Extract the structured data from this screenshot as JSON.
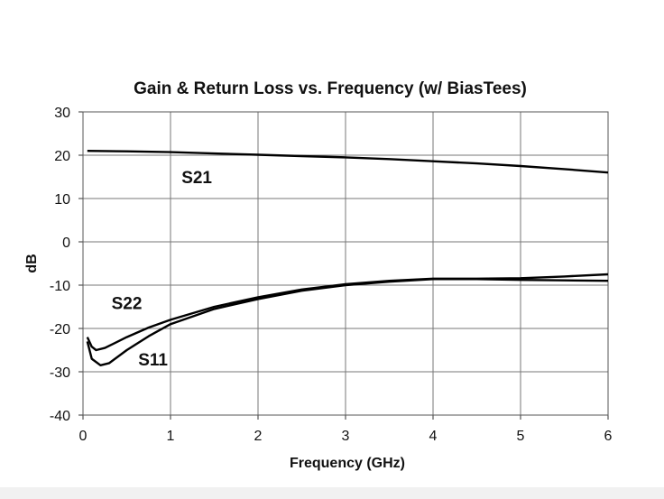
{
  "chart_data": {
    "type": "line",
    "title": "Gain & Return Loss vs. Frequency (w/ BiasTees)",
    "xlabel": "Frequency (GHz)",
    "ylabel": "dB",
    "xlim": [
      0,
      6
    ],
    "ylim": [
      -40,
      30
    ],
    "xticks": [
      "0",
      "1",
      "2",
      "3",
      "4",
      "5",
      "6"
    ],
    "yticks": [
      "30",
      "20",
      "10",
      "0",
      "-10",
      "-20",
      "-30",
      "-40"
    ],
    "grid": true,
    "series": [
      {
        "name": "S21",
        "x": [
          0.05,
          0.5,
          1,
          1.5,
          2,
          2.5,
          3,
          3.5,
          4,
          4.5,
          5,
          5.5,
          6
        ],
        "y": [
          21,
          20.9,
          20.7,
          20.4,
          20.1,
          19.8,
          19.5,
          19.1,
          18.6,
          18.1,
          17.5,
          16.8,
          16
        ]
      },
      {
        "name": "S22",
        "x": [
          0.05,
          0.1,
          0.15,
          0.25,
          0.5,
          0.75,
          1,
          1.5,
          2,
          2.5,
          3,
          3.5,
          4,
          4.5,
          5,
          5.5,
          6
        ],
        "y": [
          -22,
          -24.2,
          -25,
          -24.5,
          -22,
          -19.8,
          -18,
          -15,
          -12.8,
          -11,
          -9.8,
          -9,
          -8.5,
          -8.5,
          -8.4,
          -8,
          -7.5
        ]
      },
      {
        "name": "S11",
        "x": [
          0.05,
          0.1,
          0.2,
          0.3,
          0.5,
          0.75,
          1,
          1.5,
          2,
          2.5,
          3,
          3.5,
          4,
          4.5,
          5,
          5.5,
          6
        ],
        "y": [
          -23,
          -27,
          -28.5,
          -28,
          -25,
          -21.8,
          -19,
          -15.5,
          -13.2,
          -11.3,
          -10,
          -9.2,
          -8.6,
          -8.6,
          -8.8,
          -8.9,
          -9
        ]
      }
    ],
    "annotations": [
      {
        "text": "S21",
        "x": 1.3,
        "y": 13.5
      },
      {
        "text": "S22",
        "x": 0.5,
        "y": -15.5
      },
      {
        "text": "S11",
        "x": 0.8,
        "y": -28.5
      }
    ]
  }
}
